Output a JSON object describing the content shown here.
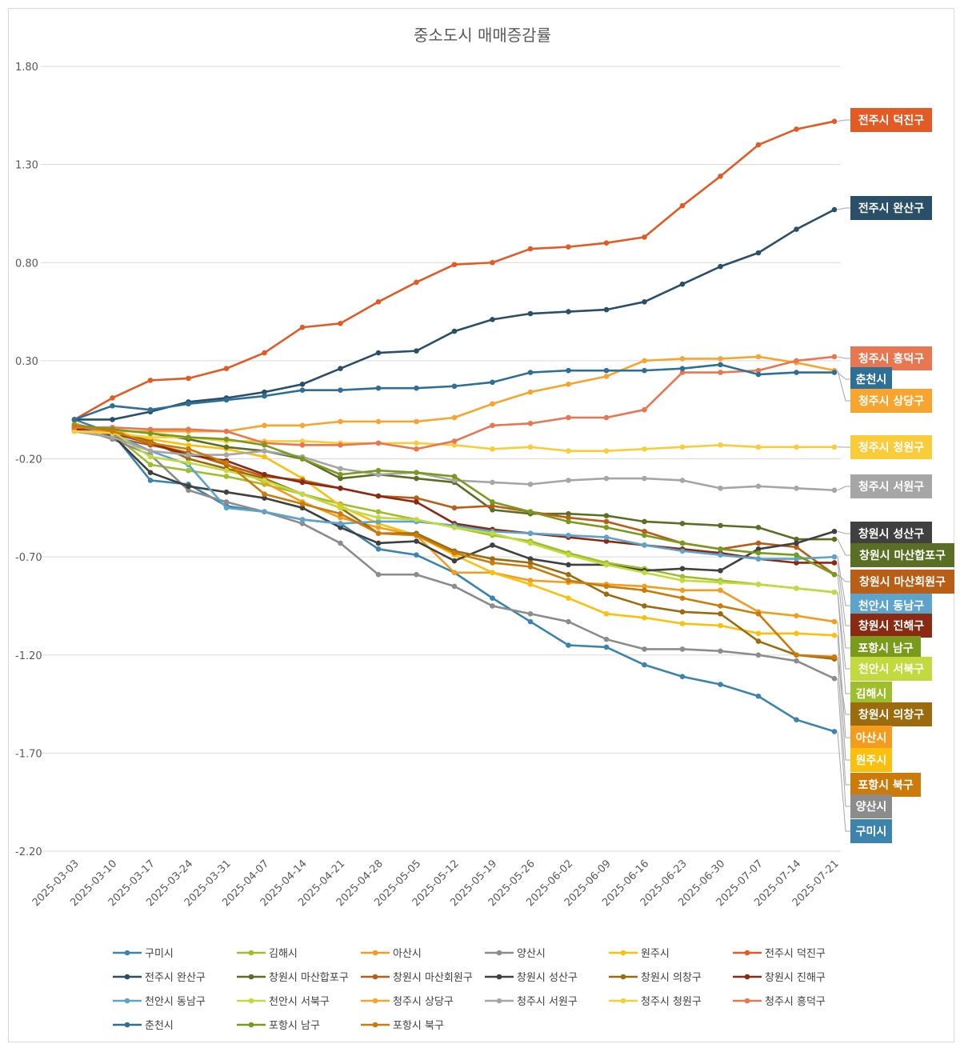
{
  "chart_data": {
    "type": "line",
    "title": "중소도시 매매증감률",
    "xlabel": "",
    "ylabel": "",
    "ylim": [
      -2.2,
      1.8
    ],
    "yticks": [
      "1.80",
      "1.30",
      "0.80",
      "0.30",
      "-0.20",
      "-0.70",
      "-1.20",
      "-1.70",
      "-2.20"
    ],
    "ytick_values": [
      1.8,
      1.3,
      0.8,
      0.3,
      -0.2,
      -0.7,
      -1.2,
      -1.7,
      -2.2
    ],
    "grid": true,
    "legend_position": "bottom",
    "x": [
      "2025-03-03",
      "2025-03-10",
      "2025-03-17",
      "2025-03-24",
      "2025-03-31",
      "2025-04-07",
      "2025-04-14",
      "2025-04-21",
      "2025-04-28",
      "2025-05-05",
      "2025-05-12",
      "2025-05-19",
      "2025-05-26",
      "2025-06-02",
      "2025-06-09",
      "2025-06-16",
      "2025-06-23",
      "2025-06-30",
      "2025-07-07",
      "2025-07-14",
      "2025-07-21"
    ],
    "series": [
      {
        "name": "구미시",
        "color": "#3c84ac",
        "values": [
          0.0,
          -0.07,
          -0.31,
          -0.33,
          -0.44,
          -0.47,
          -0.51,
          -0.53,
          -0.66,
          -0.69,
          -0.78,
          -0.91,
          -1.03,
          -1.15,
          -1.16,
          -1.25,
          -1.31,
          -1.35,
          -1.41,
          -1.53,
          -1.59
        ]
      },
      {
        "name": "김해시",
        "color": "#9ebe2d",
        "values": [
          -0.02,
          -0.07,
          -0.23,
          -0.26,
          -0.29,
          -0.33,
          -0.38,
          -0.43,
          -0.47,
          -0.51,
          -0.55,
          -0.59,
          -0.62,
          -0.68,
          -0.73,
          -0.76,
          -0.8,
          -0.82,
          -0.84,
          -0.86,
          -0.88
        ]
      },
      {
        "name": "아산시",
        "color": "#f39c1d",
        "values": [
          -0.03,
          -0.06,
          -0.12,
          -0.17,
          -0.23,
          -0.32,
          -0.42,
          -0.5,
          -0.55,
          -0.59,
          -0.78,
          -0.78,
          -0.82,
          -0.83,
          -0.84,
          -0.85,
          -0.87,
          -0.87,
          -0.98,
          -1.0,
          -1.03
        ]
      },
      {
        "name": "양산시",
        "color": "#8c8c8c",
        "values": [
          -0.04,
          -0.1,
          -0.18,
          -0.36,
          -0.42,
          -0.47,
          -0.53,
          -0.63,
          -0.79,
          -0.79,
          -0.85,
          -0.95,
          -0.99,
          -1.03,
          -1.12,
          -1.17,
          -1.17,
          -1.18,
          -1.2,
          -1.23,
          -1.32
        ]
      },
      {
        "name": "원주시",
        "color": "#fbbf0e",
        "values": [
          -0.04,
          -0.06,
          -0.1,
          -0.13,
          -0.15,
          -0.19,
          -0.3,
          -0.44,
          -0.53,
          -0.59,
          -0.69,
          -0.78,
          -0.84,
          -0.91,
          -0.99,
          -1.01,
          -1.04,
          -1.05,
          -1.09,
          -1.09,
          -1.1
        ]
      },
      {
        "name": "전주시 덕진구",
        "color": "#e25a24",
        "values": [
          0.0,
          0.11,
          0.2,
          0.21,
          0.26,
          0.34,
          0.47,
          0.49,
          0.6,
          0.7,
          0.79,
          0.8,
          0.87,
          0.88,
          0.9,
          0.93,
          1.09,
          1.24,
          1.4,
          1.48,
          1.52
        ]
      },
      {
        "name": "전주시 완산구",
        "color": "#2a4f69",
        "values": [
          0.0,
          0.0,
          0.04,
          0.09,
          0.11,
          0.14,
          0.18,
          0.26,
          0.34,
          0.35,
          0.45,
          0.51,
          0.54,
          0.55,
          0.56,
          0.6,
          0.69,
          0.78,
          0.85,
          0.97,
          1.07
        ]
      },
      {
        "name": "창원시 마산합포구",
        "color": "#5a6e24",
        "values": [
          -0.03,
          -0.05,
          -0.07,
          -0.1,
          -0.14,
          -0.16,
          -0.2,
          -0.3,
          -0.28,
          -0.3,
          -0.32,
          -0.46,
          -0.48,
          -0.48,
          -0.49,
          -0.52,
          -0.53,
          -0.54,
          -0.55,
          -0.61,
          -0.61
        ]
      },
      {
        "name": "창원시 마산회원구",
        "color": "#b85e16",
        "values": [
          -0.06,
          -0.09,
          -0.13,
          -0.17,
          -0.23,
          -0.29,
          -0.31,
          -0.35,
          -0.39,
          -0.4,
          -0.45,
          -0.44,
          -0.47,
          -0.5,
          -0.52,
          -0.57,
          -0.63,
          -0.66,
          -0.63,
          -0.65,
          -0.79
        ]
      },
      {
        "name": "창원시 성산구",
        "color": "#404040",
        "values": [
          -0.04,
          -0.08,
          -0.27,
          -0.34,
          -0.37,
          -0.4,
          -0.45,
          -0.55,
          -0.63,
          -0.62,
          -0.72,
          -0.64,
          -0.71,
          -0.74,
          -0.74,
          -0.77,
          -0.76,
          -0.77,
          -0.66,
          -0.63,
          -0.57
        ]
      },
      {
        "name": "창원시 의창구",
        "color": "#9c6b0e",
        "values": [
          -0.04,
          -0.06,
          -0.11,
          -0.2,
          -0.25,
          -0.3,
          -0.38,
          -0.45,
          -0.58,
          -0.58,
          -0.67,
          -0.71,
          -0.73,
          -0.79,
          -0.89,
          -0.95,
          -0.98,
          -0.99,
          -1.13,
          -1.2,
          -1.22
        ]
      },
      {
        "name": "창원시 진해구",
        "color": "#8a2a12",
        "values": [
          -0.05,
          -0.07,
          -0.12,
          -0.18,
          -0.21,
          -0.28,
          -0.32,
          -0.35,
          -0.39,
          -0.42,
          -0.53,
          -0.56,
          -0.58,
          -0.6,
          -0.62,
          -0.64,
          -0.66,
          -0.68,
          -0.71,
          -0.73,
          -0.73
        ]
      },
      {
        "name": "천안시 동남구",
        "color": "#5ea3c9",
        "values": [
          -0.03,
          -0.07,
          -0.16,
          -0.23,
          -0.45,
          -0.47,
          -0.51,
          -0.53,
          -0.52,
          -0.52,
          -0.54,
          -0.57,
          -0.58,
          -0.59,
          -0.6,
          -0.64,
          -0.67,
          -0.69,
          -0.71,
          -0.71,
          -0.7
        ]
      },
      {
        "name": "천안시 서북구",
        "color": "#c3da3f",
        "values": [
          -0.03,
          -0.06,
          -0.19,
          -0.22,
          -0.26,
          -0.31,
          -0.38,
          -0.45,
          -0.5,
          -0.51,
          -0.55,
          -0.58,
          -0.63,
          -0.69,
          -0.74,
          -0.78,
          -0.82,
          -0.83,
          -0.84,
          -0.86,
          -0.88
        ]
      },
      {
        "name": "청주시 상당구",
        "color": "#f7a52f",
        "values": [
          -0.06,
          -0.06,
          -0.06,
          -0.06,
          -0.06,
          -0.03,
          -0.03,
          -0.01,
          -0.01,
          -0.01,
          0.01,
          0.08,
          0.14,
          0.18,
          0.22,
          0.3,
          0.31,
          0.31,
          0.32,
          0.29,
          0.25
        ]
      },
      {
        "name": "청주시 서원구",
        "color": "#a6a6a6",
        "values": [
          -0.06,
          -0.09,
          -0.16,
          -0.18,
          -0.18,
          -0.16,
          -0.19,
          -0.25,
          -0.28,
          -0.27,
          -0.31,
          -0.32,
          -0.33,
          -0.31,
          -0.3,
          -0.3,
          -0.31,
          -0.35,
          -0.34,
          -0.35,
          -0.36
        ]
      },
      {
        "name": "청주시 청원구",
        "color": "#f9cc3a",
        "values": [
          -0.06,
          -0.07,
          -0.09,
          -0.09,
          -0.11,
          -0.11,
          -0.11,
          -0.12,
          -0.12,
          -0.12,
          -0.13,
          -0.15,
          -0.14,
          -0.16,
          -0.16,
          -0.15,
          -0.14,
          -0.13,
          -0.14,
          -0.14,
          -0.14
        ]
      },
      {
        "name": "청주시 흥덕구",
        "color": "#e87651",
        "values": [
          -0.04,
          -0.04,
          -0.05,
          -0.05,
          -0.06,
          -0.12,
          -0.13,
          -0.13,
          -0.12,
          -0.15,
          -0.11,
          -0.03,
          -0.02,
          0.01,
          0.01,
          0.05,
          0.24,
          0.24,
          0.25,
          0.3,
          0.32
        ]
      },
      {
        "name": "춘천시",
        "color": "#2e6f96",
        "values": [
          0.0,
          0.07,
          0.05,
          0.08,
          0.1,
          0.12,
          0.15,
          0.15,
          0.16,
          0.16,
          0.17,
          0.19,
          0.24,
          0.25,
          0.25,
          0.25,
          0.26,
          0.28,
          0.23,
          0.24,
          0.24
        ]
      },
      {
        "name": "포항시 남구",
        "color": "#7a9a1c",
        "values": [
          -0.03,
          -0.05,
          -0.07,
          -0.09,
          -0.1,
          -0.13,
          -0.2,
          -0.28,
          -0.26,
          -0.27,
          -0.29,
          -0.42,
          -0.47,
          -0.52,
          -0.55,
          -0.59,
          -0.63,
          -0.66,
          -0.68,
          -0.69,
          -0.79
        ]
      },
      {
        "name": "포항시 북구",
        "color": "#cc7a0a",
        "values": [
          -0.03,
          -0.06,
          -0.12,
          -0.15,
          -0.22,
          -0.38,
          -0.43,
          -0.48,
          -0.58,
          -0.59,
          -0.68,
          -0.73,
          -0.75,
          -0.82,
          -0.85,
          -0.87,
          -0.91,
          -0.95,
          -0.99,
          -1.2,
          -1.21
        ]
      }
    ],
    "end_labels": [
      {
        "text": "전주시 덕진구",
        "color": "#e25a24",
        "order": 1
      },
      {
        "text": "전주시 완산구",
        "color": "#2a4f69",
        "order": 2
      },
      {
        "text": "청주시 흥덕구",
        "color": "#e87651",
        "order": 3
      },
      {
        "text": "춘천시",
        "color": "#2e6f96",
        "order": 4
      },
      {
        "text": "청주시 상당구",
        "color": "#f7a52f",
        "order": 5
      },
      {
        "text": "청주시 청원구",
        "color": "#f9cc3a",
        "order": 6
      },
      {
        "text": "청주시 서원구",
        "color": "#a6a6a6",
        "order": 7
      },
      {
        "text": "창원시 성산구",
        "color": "#404040",
        "order": 8
      },
      {
        "text": "창원시 마산합포구",
        "color": "#5a6e24",
        "order": 9
      },
      {
        "text": "창원시 마산회원구",
        "color": "#b85e16",
        "order": 10
      },
      {
        "text": "천안시 동남구",
        "color": "#5ea3c9",
        "order": 11
      },
      {
        "text": "창원시 진해구",
        "color": "#8a2a12",
        "order": 12
      },
      {
        "text": "포항시 남구",
        "color": "#7a9a1c",
        "order": 13
      },
      {
        "text": "천안시 서북구",
        "color": "#c3da3f",
        "order": 14
      },
      {
        "text": "김해시",
        "color": "#9ebe2d",
        "order": 15
      },
      {
        "text": "창원시 의창구",
        "color": "#9c6b0e",
        "order": 16
      },
      {
        "text": "아산시",
        "color": "#f39c1d",
        "order": 17
      },
      {
        "text": "원주시",
        "color": "#fbbf0e",
        "order": 18
      },
      {
        "text": "포항시 북구",
        "color": "#cc7a0a",
        "order": 19
      },
      {
        "text": "양산시",
        "color": "#8c8c8c",
        "order": 20
      },
      {
        "text": "구미시",
        "color": "#3c84ac",
        "order": 21
      }
    ]
  }
}
